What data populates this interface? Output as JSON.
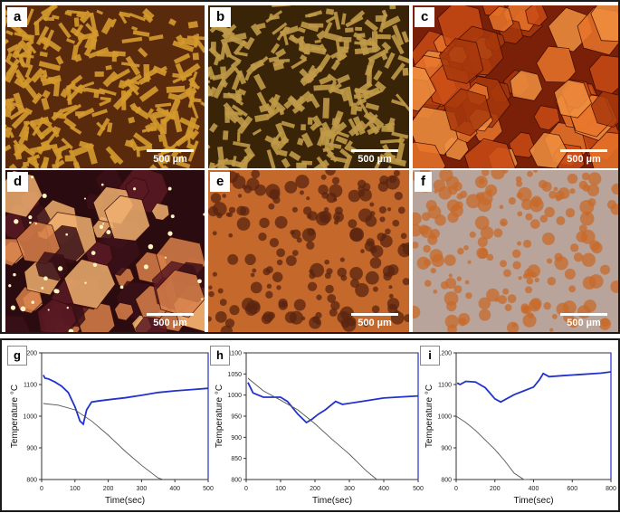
{
  "micrographs": [
    {
      "label": "a",
      "scale_bar": "500 µm",
      "colors": [
        "#d49a2e",
        "#5a2a0c"
      ]
    },
    {
      "label": "b",
      "scale_bar": "500 µm",
      "colors": [
        "#c09a48",
        "#3a2408"
      ]
    },
    {
      "label": "c",
      "scale_bar": "500 µm",
      "colors": [
        "#d9561c",
        "#7a2008"
      ]
    },
    {
      "label": "d",
      "scale_bar": "500 µm",
      "colors": [
        "#8a3a1a",
        "#2a0c10"
      ]
    },
    {
      "label": "e",
      "scale_bar": "500 µm",
      "colors": [
        "#c4682c",
        "#5a2410"
      ]
    },
    {
      "label": "f",
      "scale_bar": "500 µm",
      "colors": [
        "#b8a49a",
        "#c86a2a"
      ]
    }
  ],
  "chart_data": [
    {
      "label": "g",
      "type": "line",
      "xlabel": "Time(sec)",
      "ylabel": "Temperature °C",
      "xlim": [
        0,
        500
      ],
      "ylim": [
        800,
        1200
      ],
      "xticks": [
        0,
        100,
        200,
        300,
        400,
        500
      ],
      "yticks": [
        800,
        900,
        1000,
        1100,
        1200
      ],
      "series": [
        {
          "color": "#2233cc",
          "x": [
            5,
            10,
            20,
            40,
            60,
            80,
            100,
            115,
            125,
            135,
            150,
            170,
            200,
            250,
            300,
            350,
            400,
            450,
            500
          ],
          "y": [
            1130,
            1120,
            1118,
            1108,
            1095,
            1075,
            1030,
            985,
            975,
            1020,
            1045,
            1048,
            1052,
            1058,
            1066,
            1075,
            1080,
            1084,
            1088
          ]
        },
        {
          "color": "#555555",
          "x": [
            5,
            50,
            100,
            150,
            200,
            250,
            300,
            350,
            365
          ],
          "y": [
            1040,
            1035,
            1020,
            985,
            940,
            890,
            845,
            805,
            800
          ]
        }
      ]
    },
    {
      "label": "h",
      "type": "line",
      "xlabel": "Time(sec)",
      "ylabel": "Temperature °C",
      "xlim": [
        0,
        500
      ],
      "ylim": [
        800,
        1100
      ],
      "xticks": [
        0,
        100,
        200,
        300,
        400,
        500
      ],
      "yticks": [
        800,
        850,
        900,
        950,
        1000,
        1050,
        1100
      ],
      "series": [
        {
          "color": "#2233cc",
          "x": [
            5,
            20,
            50,
            80,
            100,
            120,
            150,
            175,
            190,
            210,
            230,
            260,
            280,
            320,
            400,
            460,
            500
          ],
          "y": [
            1030,
            1005,
            995,
            995,
            995,
            985,
            955,
            935,
            942,
            955,
            965,
            985,
            978,
            983,
            993,
            996,
            998
          ]
        },
        {
          "color": "#555555",
          "x": [
            5,
            50,
            100,
            150,
            200,
            250,
            300,
            350,
            380
          ],
          "y": [
            1040,
            1010,
            988,
            965,
            932,
            895,
            860,
            820,
            800
          ]
        }
      ]
    },
    {
      "label": "i",
      "type": "line",
      "xlabel": "Time(sec)",
      "ylabel": "Temperature °C",
      "xlim": [
        0,
        800
      ],
      "ylim": [
        800,
        1200
      ],
      "xticks": [
        0,
        200,
        400,
        600,
        800
      ],
      "yticks": [
        800,
        900,
        1000,
        1100,
        1200
      ],
      "series": [
        {
          "color": "#2233cc",
          "x": [
            5,
            20,
            50,
            100,
            150,
            200,
            230,
            260,
            300,
            350,
            400,
            430,
            450,
            480,
            550,
            650,
            750,
            800
          ],
          "y": [
            1105,
            1100,
            1110,
            1108,
            1090,
            1055,
            1045,
            1055,
            1068,
            1080,
            1092,
            1115,
            1135,
            1125,
            1128,
            1132,
            1136,
            1140
          ]
        },
        {
          "color": "#555555",
          "x": [
            0,
            50,
            100,
            150,
            200,
            250,
            300,
            350,
            380
          ],
          "y": [
            1000,
            980,
            955,
            925,
            895,
            860,
            820,
            800,
            800
          ]
        }
      ]
    }
  ]
}
